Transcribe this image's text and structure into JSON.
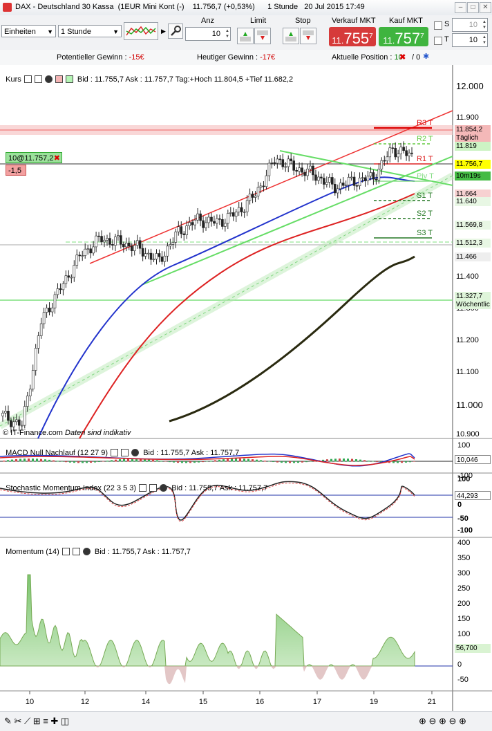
{
  "window": {
    "title": "DAX - Deutschland 30 Kassa  (1EUR Mini Kont (-)    11.756,7 (+0,53%)      1 Stunde   20 Jul 2015 17:49"
  },
  "toolbar": {
    "unit_select": "Einheiten",
    "period_select": "1 Stunde",
    "anz_label": "Anz",
    "anz_value": "10",
    "limit_label": "Limit",
    "stop_label": "Stop",
    "sell_label": "Verkauf MKT",
    "sell_big": "11.755",
    "sell_pre": "11.",
    "sell_main": "755",
    "sell_sup": "7",
    "buy_label": "Kauf MKT",
    "buy_pre": "11.",
    "buy_main": "757",
    "buy_sup": "7",
    "s_label": "S",
    "s_value": "10",
    "t_label": "T",
    "t_value": "10"
  },
  "info": {
    "pot_label": "Potentieller Gewinn : ",
    "pot_value": "-15€",
    "today_label": "Heutiger Gewinn : ",
    "today_value": "-17€",
    "pos_label": "Aktuelle Position : ",
    "pos_value": "10",
    "pos_sep": "/ 0"
  },
  "panels": {
    "price": {
      "name": "Kurs",
      "info": "Bid : 11.755,7 Ask : 11.757,7 Tag:+Hoch 11.804,5 +Tief 11.682,2",
      "order_tag": "10@11.757,2",
      "pl_tag": "-1,5",
      "credit": "© IT-Finance.com ",
      "credit_italic": "Daten sind indikativ"
    },
    "macd": {
      "name": "MACD Null Nachlauf (12 27 9)",
      "info": "Bid : 11.755,7 Ask : 11.757,7"
    },
    "stoch": {
      "name": "Stochastic Momentum Index (22 3 5 3)",
      "info": "Bid : 11.755,7 Ask : 11.757,7"
    },
    "mom": {
      "name": "Momentum (14)",
      "info": "Bid : 11.755,7 Ask : 11.757,7"
    }
  },
  "price_axis": [
    "12.000",
    "11.900",
    "11.400",
    "11.300",
    "11.200",
    "11.100",
    "11.000",
    "10.900"
  ],
  "price_tags": [
    {
      "text": "11.854,2",
      "bg": "#f4b8b8",
      "y": 187
    },
    {
      "text": "Täglich",
      "bg": "#f4b8b8",
      "y": 199
    },
    {
      "text": "11.819",
      "bg": "#cdf3c4",
      "y": 211
    },
    {
      "text": "11.756,7",
      "bg": "#ffff00",
      "y": 237
    },
    {
      "text": "10m19s",
      "bg": "#44bb44",
      "y": 254
    },
    {
      "text": "11.664",
      "bg": "#f7d1d1",
      "y": 280
    },
    {
      "text": "11.640",
      "bg": "#e8f7e4",
      "y": 291
    },
    {
      "text": "11.569,8",
      "bg": "#e8f7e4",
      "y": 325
    },
    {
      "text": "11.512,3",
      "bg": "#e8f7e4",
      "y": 351
    },
    {
      "text": "11.466",
      "bg": "#eeeeee",
      "y": 371
    },
    {
      "text": "11.327,7",
      "bg": "#dff5da",
      "y": 428
    },
    {
      "text": "Wöchentlic",
      "bg": "#dff5da",
      "y": 440
    }
  ],
  "pivots": [
    {
      "label": "R2 T",
      "color": "#66cc44",
      "y": 208
    },
    {
      "label": "R1 T",
      "color": "#dd2222",
      "y": 237
    },
    {
      "label": "Piv T",
      "color": "#88dd88",
      "y": 262
    },
    {
      "label": "S1 T",
      "color": "#227722",
      "y": 290
    },
    {
      "label": "S2 T",
      "color": "#227722",
      "y": 316
    },
    {
      "label": "S3 T",
      "color": "#227722",
      "y": 344
    },
    {
      "label": "R3 T",
      "color": "#dd0000",
      "y": 185
    }
  ],
  "macd_axis": [
    "100",
    "0",
    "-100"
  ],
  "macd_value": "10,046",
  "stoch_axis": [
    "100",
    "50",
    "0",
    "-50",
    "-100"
  ],
  "stoch_value": "44,293",
  "mom_axis": [
    "400",
    "350",
    "300",
    "250",
    "200",
    "150",
    "100",
    "50",
    "0",
    "-50"
  ],
  "mom_value": "56,700",
  "x_labels": [
    "10",
    "12",
    "14",
    "15",
    "16",
    "17",
    "19",
    "21"
  ],
  "chart_data": {
    "type": "line",
    "title": "DAX - Deutschland 30 Kassa",
    "x_labels": [
      "10",
      "12",
      "14",
      "15",
      "16",
      "17",
      "19",
      "21"
    ],
    "ylim": [
      10880,
      12040
    ],
    "series": [
      {
        "name": "Kurs",
        "values": [
          10950,
          10920,
          11250,
          11350,
          11450,
          11500,
          11490,
          11470,
          11430,
          11520,
          11560,
          11550,
          11580,
          11640,
          11750,
          11720,
          11700,
          11660,
          11680,
          11690,
          11780,
          11757
        ]
      }
    ]
  }
}
